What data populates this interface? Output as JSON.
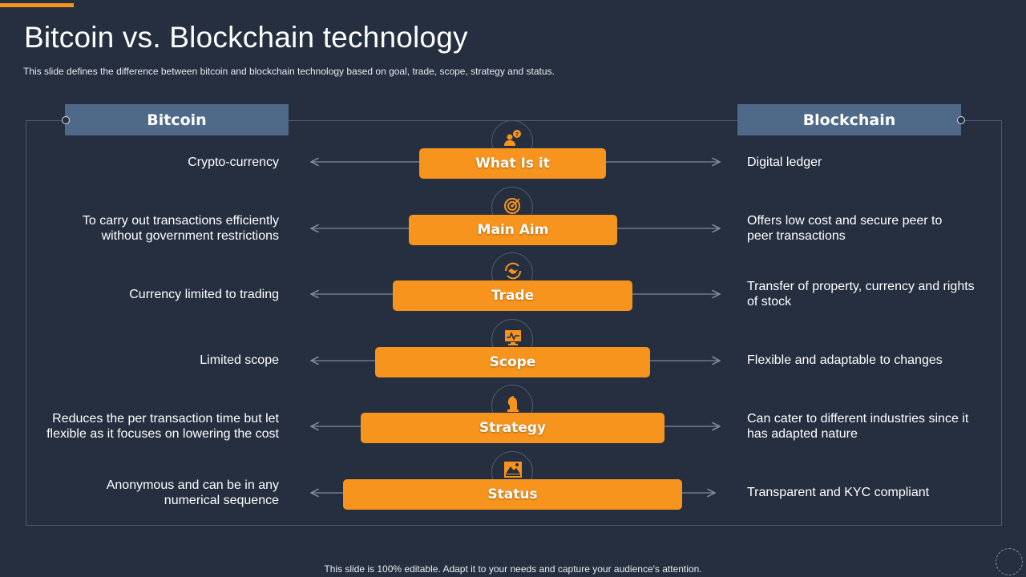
{
  "slide": {
    "title": "Bitcoin vs. Blockchain technology",
    "subtitle": "This slide defines the difference  between bitcoin and blockchain technology based on goal, trade, scope, strategy and status.",
    "footer": "This slide is 100% editable. Adapt it to your needs and capture your audience's attention."
  },
  "columns": {
    "left": "Bitcoin",
    "right": "Blockchain"
  },
  "colors": {
    "background": "#252f3f",
    "accent": "#f7941d",
    "header": "#4f6989"
  },
  "rows": [
    {
      "label": "What Is it",
      "icon": "user-question-icon",
      "left": [
        "Crypto-currency"
      ],
      "right": [
        "Digital ledger"
      ]
    },
    {
      "label": "Main Aim",
      "icon": "target-icon",
      "left": [
        "To carry out transactions efficiently",
        "without government restrictions"
      ],
      "right": [
        "Offers low cost and secure peer to",
        "peer transactions"
      ]
    },
    {
      "label": "Trade",
      "icon": "handshake-icon",
      "left": [
        "Currency  limited to trading"
      ],
      "right": [
        "Transfer  of property, currency  and rights",
        "of stock"
      ]
    },
    {
      "label": "Scope",
      "icon": "monitor-chart-icon",
      "left": [
        "Limited scope"
      ],
      "right": [
        "Flexible and adaptable to changes"
      ]
    },
    {
      "label": "Strategy",
      "icon": "chess-knight-icon",
      "left": [
        "Reduces the per transaction time but let",
        "flexible as it focuses on lowering the cost"
      ],
      "right": [
        "Can cater to different industries since it",
        "has adapted nature"
      ]
    },
    {
      "label": "Status",
      "icon": "mountain-picture-icon",
      "left": [
        "Anonymous  and can be in any",
        "numerical sequence"
      ],
      "right": [
        "Transparent  and KYC compliant"
      ]
    }
  ]
}
